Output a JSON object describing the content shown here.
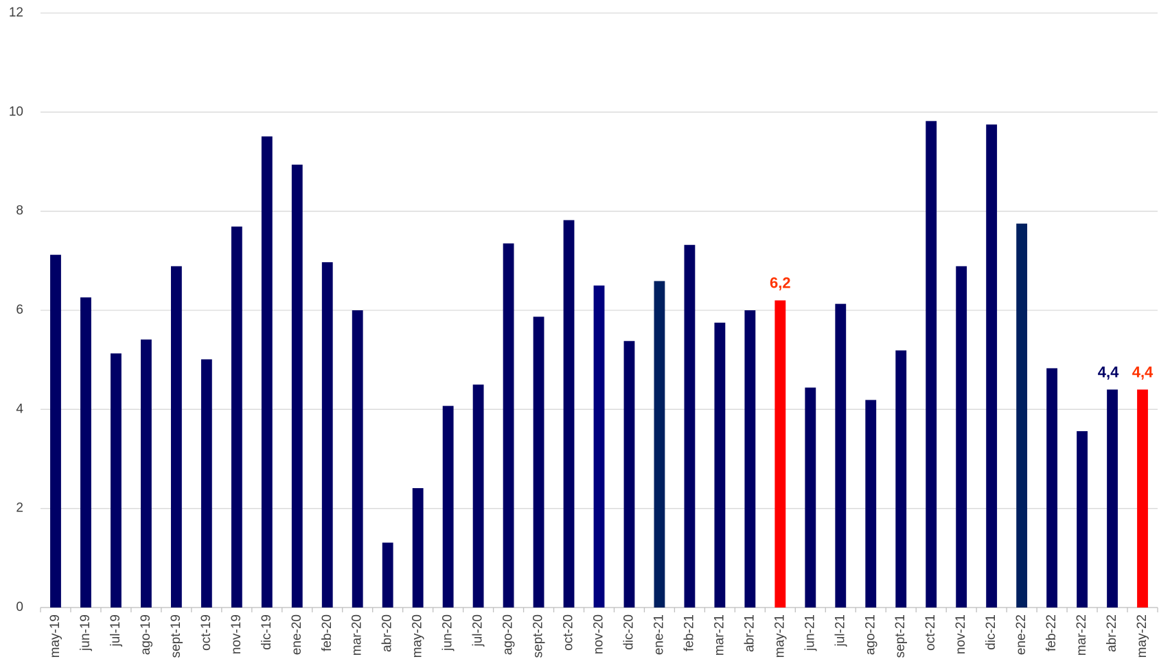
{
  "chart_data": {
    "type": "bar",
    "categories": [
      "may-19",
      "jun-19",
      "jul-19",
      "ago-19",
      "sept-19",
      "oct-19",
      "nov-19",
      "dic-19",
      "ene-20",
      "feb-20",
      "mar-20",
      "abr-20",
      "may-20",
      "jun-20",
      "jul-20",
      "ago-20",
      "sept-20",
      "oct-20",
      "nov-20",
      "dic-20",
      "ene-21",
      "feb-21",
      "mar-21",
      "abr-21",
      "may-21",
      "jun-21",
      "jul-21",
      "ago-21",
      "sept-21",
      "oct-21",
      "nov-21",
      "dic-21",
      "ene-22",
      "feb-22",
      "mar-22",
      "abr-22",
      "may-22"
    ],
    "values": [
      7.12,
      6.26,
      5.13,
      5.41,
      6.89,
      5.01,
      7.69,
      9.51,
      8.94,
      6.97,
      6.0,
      1.31,
      2.41,
      4.07,
      4.5,
      7.35,
      5.87,
      7.82,
      6.5,
      5.38,
      6.59,
      7.32,
      5.75,
      6.0,
      6.2,
      4.44,
      6.13,
      4.19,
      5.19,
      9.82,
      6.89,
      9.75,
      7.75,
      4.83,
      3.56,
      4.4,
      4.4
    ],
    "value_labels": [
      null,
      null,
      null,
      null,
      null,
      null,
      null,
      null,
      null,
      null,
      null,
      null,
      null,
      null,
      null,
      null,
      null,
      null,
      null,
      null,
      null,
      null,
      null,
      null,
      "6,2",
      null,
      null,
      null,
      null,
      null,
      null,
      null,
      null,
      null,
      null,
      "4,4",
      "4,4"
    ],
    "colors": [
      "#000066",
      "#000066",
      "#000066",
      "#000066",
      "#000066",
      "#000066",
      "#000066",
      "#000066",
      "#000066",
      "#000066",
      "#000066",
      "#000066",
      "#000066",
      "#000066",
      "#000066",
      "#000066",
      "#000066",
      "#000066",
      "#00007f",
      "#000066",
      "#002060",
      "#000066",
      "#000066",
      "#000066",
      "#ff0000",
      "#000066",
      "#000066",
      "#000066",
      "#000066",
      "#000066",
      "#000066",
      "#000066",
      "#002060",
      "#000066",
      "#000066",
      "#000066",
      "#ff0000"
    ],
    "value_label_colors": [
      null,
      null,
      null,
      null,
      null,
      null,
      null,
      null,
      null,
      null,
      null,
      null,
      null,
      null,
      null,
      null,
      null,
      null,
      null,
      null,
      null,
      null,
      null,
      null,
      "#ff3300",
      null,
      null,
      null,
      null,
      null,
      null,
      null,
      null,
      null,
      null,
      "#000066",
      "#ff3300"
    ],
    "ylim": [
      0,
      12
    ],
    "yticks": [
      0,
      2,
      4,
      6,
      8,
      10,
      12
    ],
    "grid": true
  }
}
